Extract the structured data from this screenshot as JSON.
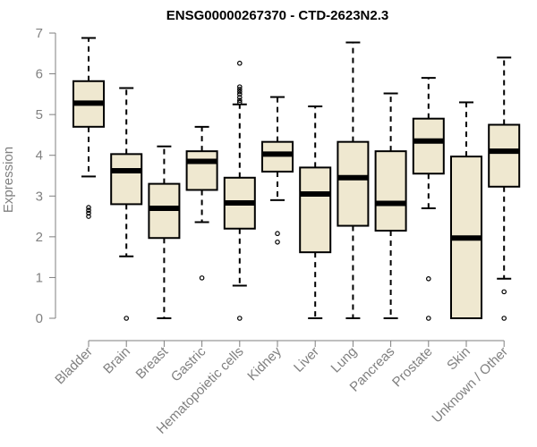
{
  "chart_data": {
    "type": "box",
    "title": "ENSG00000267370 - CTD-2623N2.3",
    "xlabel": "",
    "ylabel": "Expression",
    "ylim": [
      0,
      7
    ],
    "yticks": [
      0,
      1,
      2,
      3,
      4,
      5,
      6,
      7
    ],
    "grid": false,
    "colors": {
      "box_fill": "#efe8d0",
      "box_stroke": "#000000",
      "axis": "#7f7f7f",
      "tick_text": "#808080"
    },
    "categories": [
      "Bladder",
      "Brain",
      "Breast",
      "Gastric",
      "Hematopoietic cells",
      "Kidney",
      "Liver",
      "Lung",
      "Pancreas",
      "Prostate",
      "Skin",
      "Unknown / Other"
    ],
    "boxes": [
      {
        "category": "Bladder",
        "min": 3.48,
        "q1": 4.7,
        "median": 5.28,
        "q3": 5.82,
        "max": 6.88,
        "outliers": [
          2.5,
          2.58,
          2.65,
          2.72
        ]
      },
      {
        "category": "Brain",
        "min": 1.52,
        "q1": 2.8,
        "median": 3.62,
        "q3": 4.03,
        "max": 5.65,
        "outliers": [
          0.0
        ]
      },
      {
        "category": "Breast",
        "min": 0.0,
        "q1": 1.97,
        "median": 2.7,
        "q3": 3.3,
        "max": 4.22,
        "outliers": []
      },
      {
        "category": "Gastric",
        "min": 2.36,
        "q1": 3.15,
        "median": 3.85,
        "q3": 4.1,
        "max": 4.7,
        "outliers": [
          0.99
        ]
      },
      {
        "category": "Hematopoietic cells",
        "min": 0.8,
        "q1": 2.2,
        "median": 2.83,
        "q3": 3.45,
        "max": 5.25,
        "outliers": [
          0.0,
          5.3,
          5.35,
          5.42,
          5.5,
          5.56,
          5.62,
          5.68,
          6.26
        ]
      },
      {
        "category": "Kidney",
        "min": 2.9,
        "q1": 3.6,
        "median": 4.03,
        "q3": 4.33,
        "max": 5.43,
        "outliers": [
          1.87,
          2.08
        ]
      },
      {
        "category": "Liver",
        "min": 0.0,
        "q1": 1.62,
        "median": 3.05,
        "q3": 3.7,
        "max": 5.2,
        "outliers": []
      },
      {
        "category": "Lung",
        "min": 0.0,
        "q1": 2.27,
        "median": 3.45,
        "q3": 4.33,
        "max": 6.77,
        "outliers": []
      },
      {
        "category": "Pancreas",
        "min": 0.0,
        "q1": 2.15,
        "median": 2.82,
        "q3": 4.1,
        "max": 5.52,
        "outliers": []
      },
      {
        "category": "Prostate",
        "min": 2.7,
        "q1": 3.55,
        "median": 4.35,
        "q3": 4.9,
        "max": 5.9,
        "outliers": [
          0.0,
          0.97
        ]
      },
      {
        "category": "Skin",
        "min": 0.0,
        "q1": 0.0,
        "median": 1.97,
        "q3": 3.97,
        "max": 5.3,
        "outliers": []
      },
      {
        "category": "Unknown / Other",
        "min": 0.97,
        "q1": 3.23,
        "median": 4.1,
        "q3": 4.75,
        "max": 6.4,
        "outliers": [
          0.0,
          0.65
        ]
      }
    ]
  }
}
